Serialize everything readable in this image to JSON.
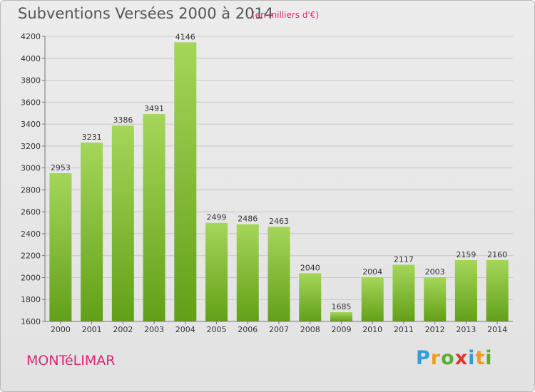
{
  "header": {
    "title": "Subventions Versées 2000 à 2014",
    "subtitle": "(en milliers d'€)"
  },
  "footer": {
    "city": "MONTéLIMAR",
    "logo_letters": [
      "P",
      "r",
      "o",
      "x",
      "i",
      "t",
      "i"
    ],
    "logo_colors": [
      "#2f9fd8",
      "#f29a1f",
      "#58ae2f",
      "#e6332a",
      "#2f9fd8",
      "#f29a1f",
      "#58ae2f"
    ]
  },
  "colors": {
    "bar_light": "#a5d65a",
    "bar_dark": "#62a018",
    "grid": "#c8c8c8",
    "text": "#333333"
  },
  "chart_data": {
    "type": "bar",
    "title": "Subventions Versées 2000 à 2014",
    "subtitle": "(en milliers d'€)",
    "xlabel": "",
    "ylabel": "",
    "categories": [
      "2000",
      "2001",
      "2002",
      "2003",
      "2004",
      "2005",
      "2006",
      "2007",
      "2008",
      "2009",
      "2010",
      "2011",
      "2012",
      "2013",
      "2014"
    ],
    "values": [
      2953,
      3231,
      3386,
      3491,
      4146,
      2499,
      2486,
      2463,
      2040,
      1685,
      2004,
      2117,
      2003,
      2159,
      2160
    ],
    "ylim": [
      1600,
      4200
    ],
    "yticks": [
      1600,
      1800,
      2000,
      2200,
      2400,
      2600,
      2800,
      3000,
      3200,
      3400,
      3600,
      3800,
      4000,
      4200
    ],
    "grid": true,
    "legend": "none"
  }
}
